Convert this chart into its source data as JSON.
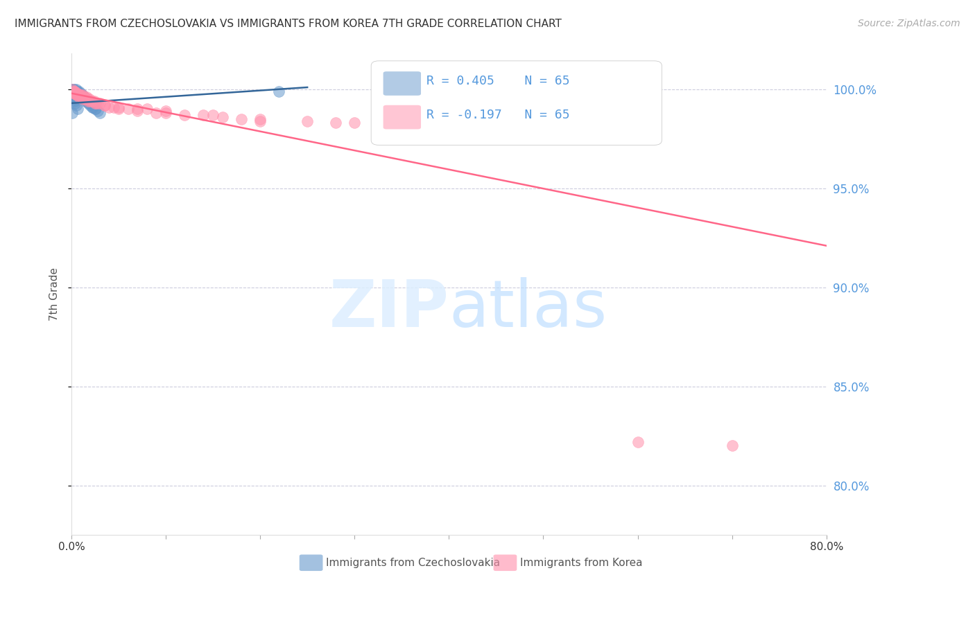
{
  "title": "IMMIGRANTS FROM CZECHOSLOVAKIA VS IMMIGRANTS FROM KOREA 7TH GRADE CORRELATION CHART",
  "source": "Source: ZipAtlas.com",
  "ylabel": "7th Grade",
  "right_ytick_labels": [
    "100.0%",
    "95.0%",
    "90.0%",
    "85.0%",
    "80.0%"
  ],
  "right_ytick_values": [
    1.0,
    0.95,
    0.9,
    0.85,
    0.8
  ],
  "x_min": 0.0,
  "x_max": 0.8,
  "y_min": 0.775,
  "y_max": 1.018,
  "blue_R": 0.405,
  "blue_N": 65,
  "pink_R": -0.197,
  "pink_N": 65,
  "blue_color": "#6699CC",
  "pink_color": "#FF8FAB",
  "blue_line_color": "#336699",
  "pink_line_color": "#FF6688",
  "right_axis_color": "#5599DD",
  "grid_color": "#CCCCDD",
  "legend_label_blue": "Immigrants from Czechoslovakia",
  "legend_label_pink": "Immigrants from Korea",
  "blue_scatter_x": [
    0.001,
    0.001,
    0.001,
    0.001,
    0.001,
    0.002,
    0.002,
    0.002,
    0.002,
    0.003,
    0.003,
    0.003,
    0.003,
    0.004,
    0.004,
    0.004,
    0.005,
    0.005,
    0.005,
    0.005,
    0.006,
    0.006,
    0.006,
    0.006,
    0.007,
    0.007,
    0.007,
    0.008,
    0.008,
    0.008,
    0.009,
    0.009,
    0.01,
    0.01,
    0.01,
    0.011,
    0.011,
    0.012,
    0.012,
    0.013,
    0.013,
    0.014,
    0.014,
    0.015,
    0.015,
    0.016,
    0.017,
    0.018,
    0.019,
    0.02,
    0.022,
    0.023,
    0.025,
    0.026,
    0.028,
    0.03,
    0.001,
    0.001,
    0.002,
    0.003,
    0.004,
    0.005,
    0.007,
    0.22,
    0.001
  ],
  "blue_scatter_y": [
    1.0,
    1.0,
    1.0,
    0.999,
    0.999,
    1.0,
    1.0,
    0.999,
    0.998,
    1.0,
    0.999,
    0.999,
    0.998,
    0.999,
    0.999,
    0.998,
    1.0,
    0.999,
    0.999,
    0.998,
    0.999,
    0.999,
    0.998,
    0.997,
    0.999,
    0.998,
    0.997,
    0.999,
    0.998,
    0.997,
    0.998,
    0.997,
    0.998,
    0.997,
    0.996,
    0.997,
    0.996,
    0.997,
    0.996,
    0.996,
    0.995,
    0.996,
    0.995,
    0.995,
    0.994,
    0.994,
    0.994,
    0.993,
    0.993,
    0.992,
    0.991,
    0.991,
    0.99,
    0.99,
    0.989,
    0.988,
    0.997,
    0.996,
    0.995,
    0.994,
    0.993,
    0.992,
    0.99,
    0.999,
    0.988
  ],
  "pink_scatter_x": [
    0.001,
    0.002,
    0.003,
    0.004,
    0.005,
    0.006,
    0.007,
    0.008,
    0.009,
    0.01,
    0.011,
    0.012,
    0.013,
    0.014,
    0.015,
    0.016,
    0.017,
    0.018,
    0.019,
    0.02,
    0.022,
    0.024,
    0.026,
    0.028,
    0.03,
    0.035,
    0.04,
    0.045,
    0.05,
    0.06,
    0.07,
    0.08,
    0.09,
    0.1,
    0.12,
    0.14,
    0.16,
    0.18,
    0.2,
    0.25,
    0.3,
    0.35,
    0.4,
    0.45,
    0.5,
    0.003,
    0.005,
    0.008,
    0.012,
    0.018,
    0.025,
    0.035,
    0.05,
    0.07,
    0.1,
    0.15,
    0.2,
    0.28,
    0.37,
    0.48,
    0.002,
    0.004,
    0.006,
    0.6,
    0.7
  ],
  "pink_scatter_y": [
    1.0,
    0.999,
    0.999,
    0.999,
    0.998,
    0.998,
    0.998,
    0.997,
    0.997,
    0.997,
    0.996,
    0.997,
    0.996,
    0.996,
    0.995,
    0.996,
    0.995,
    0.995,
    0.995,
    0.994,
    0.994,
    0.994,
    0.993,
    0.993,
    0.993,
    0.992,
    0.991,
    0.991,
    0.99,
    0.99,
    0.989,
    0.99,
    0.988,
    0.988,
    0.987,
    0.987,
    0.986,
    0.985,
    0.984,
    0.984,
    0.983,
    0.982,
    0.981,
    0.981,
    0.98,
    0.998,
    0.997,
    0.996,
    0.995,
    0.994,
    0.993,
    0.992,
    0.991,
    0.99,
    0.989,
    0.987,
    0.985,
    0.983,
    0.981,
    0.979,
    0.999,
    0.998,
    0.997,
    0.822,
    0.82
  ],
  "blue_line_x": [
    0.0,
    0.25
  ],
  "blue_line_y": [
    0.993,
    1.001
  ],
  "pink_line_x": [
    0.0,
    0.8
  ],
  "pink_line_y": [
    0.998,
    0.921
  ]
}
